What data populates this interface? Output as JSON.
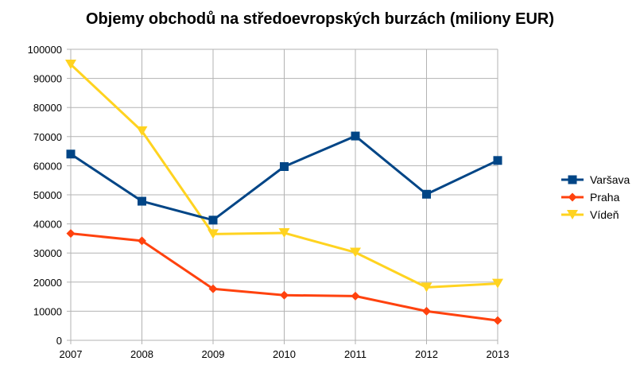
{
  "chart_data": {
    "type": "line",
    "title": "Objemy obchodů na středoevropských burzách (miliony EUR)",
    "xlabel": "",
    "ylabel": "",
    "categories": [
      "2007",
      "2008",
      "2009",
      "2010",
      "2011",
      "2012",
      "2013"
    ],
    "ylim": [
      0,
      100000
    ],
    "yticks": [
      "0",
      "10000",
      "20000",
      "30000",
      "40000",
      "50000",
      "60000",
      "70000",
      "80000",
      "90000",
      "100000"
    ],
    "grid": true,
    "legend_position": "right",
    "series": [
      {
        "name": "Varšava",
        "color": "#004586",
        "marker": "square",
        "values": [
          64000,
          47800,
          41300,
          59700,
          70200,
          50200,
          61800
        ]
      },
      {
        "name": "Praha",
        "color": "#ff420e",
        "marker": "diamond",
        "values": [
          36700,
          34200,
          17700,
          15500,
          15200,
          10000,
          6800
        ]
      },
      {
        "name": "Vídeň",
        "color": "#ffd320",
        "marker": "triangle-down",
        "values": [
          94800,
          71900,
          36500,
          36900,
          30200,
          18200,
          19500
        ]
      }
    ]
  }
}
